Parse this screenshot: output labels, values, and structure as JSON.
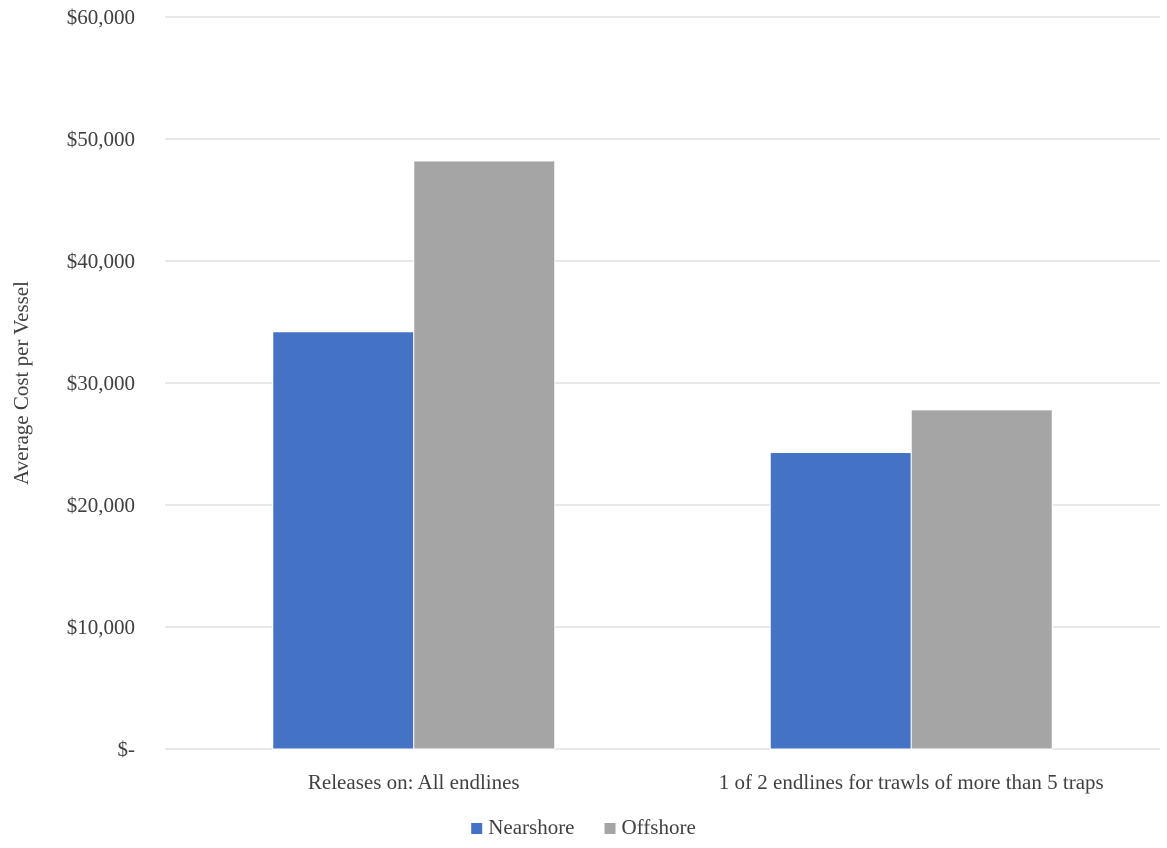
{
  "chart_data": {
    "type": "bar",
    "title": "",
    "xlabel": "",
    "ylabel": "Average Cost per Vessel",
    "ylim": [
      0,
      60000
    ],
    "yticks": [
      0,
      10000,
      20000,
      30000,
      40000,
      50000,
      60000
    ],
    "ytick_labels": [
      "$-",
      "$10,000",
      "$20,000",
      "$30,000",
      "$40,000",
      "$50,000",
      "$60,000"
    ],
    "categories": [
      "Releases on: All endlines",
      "1 of 2 endlines for trawls of more than 5 traps"
    ],
    "series": [
      {
        "name": "Nearshore",
        "color": "#4472C4",
        "values": [
          34200,
          24300
        ]
      },
      {
        "name": "Offshore",
        "color": "#A5A5A5",
        "values": [
          48200,
          27800
        ]
      }
    ],
    "grid": true,
    "legend": "bottom-center"
  }
}
